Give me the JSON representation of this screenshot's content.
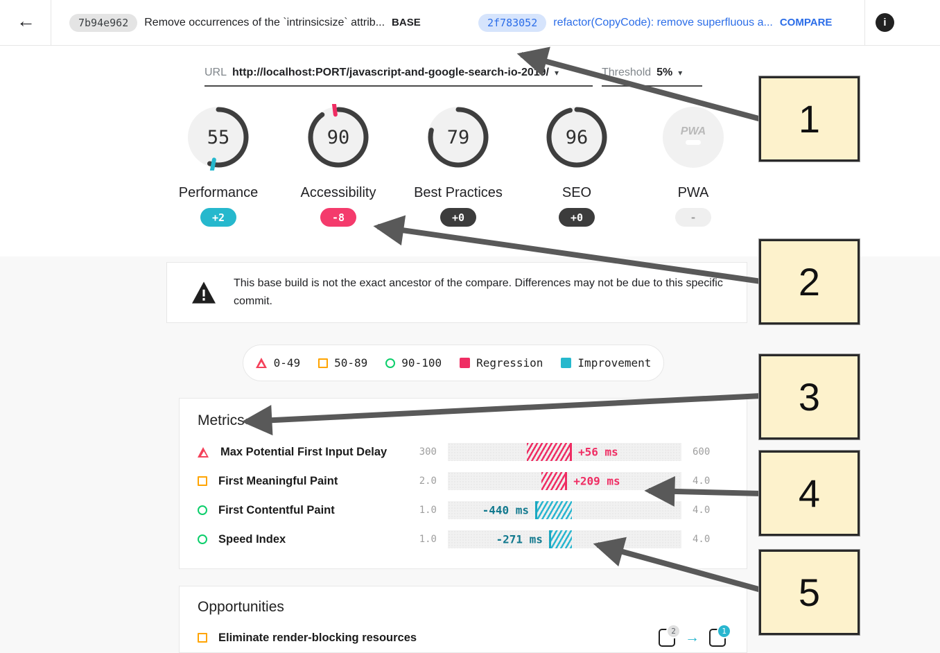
{
  "header": {
    "back_icon": "←",
    "base": {
      "hash": "7b94e962",
      "message": "Remove occurrences of the `intrinsicsize` attrib...",
      "tag": "BASE"
    },
    "compare": {
      "hash": "2f783052",
      "message": "refactor(CopyCode): remove superfluous a...",
      "tag": "COMPARE"
    },
    "info_icon": "i"
  },
  "controls": {
    "url_label": "URL",
    "url_value": "http://localhost:PORT/javascript-and-google-search-io-2019/",
    "url_caret": "▾",
    "threshold_label": "Threshold",
    "threshold_value": "5%",
    "threshold_caret": "▾"
  },
  "scores": [
    {
      "label": "Performance",
      "score": 55,
      "display": "55",
      "delta": "+2",
      "delta_value": 2,
      "delta_type": "improvement"
    },
    {
      "label": "Accessibility",
      "score": 90,
      "display": "90",
      "delta": "-8",
      "delta_value": -8,
      "delta_type": "regression"
    },
    {
      "label": "Best Practices",
      "score": 79,
      "display": "79",
      "delta": "+0",
      "delta_value": 0,
      "delta_type": "neutral"
    },
    {
      "label": "SEO",
      "score": 96,
      "display": "96",
      "delta": "+0",
      "delta_value": 0,
      "delta_type": "neutral"
    },
    {
      "label": "PWA",
      "type": "pwa",
      "logo": "PWA",
      "delta": "-",
      "delta_type": "none"
    }
  ],
  "warning": {
    "text": "This base build is not the exact ancestor of the compare. Differences may not be due to this specific commit."
  },
  "legend": [
    {
      "shape": "triangle",
      "label": "0-49"
    },
    {
      "shape": "square",
      "label": "50-89"
    },
    {
      "shape": "circle",
      "label": "90-100"
    },
    {
      "shape": "regression",
      "label": "Regression"
    },
    {
      "shape": "improvement",
      "label": "Improvement"
    }
  ],
  "metrics": {
    "title": "Metrics",
    "rows": [
      {
        "icon": "triangle",
        "label": "Max Potential First Input Delay",
        "axis_left": "300",
        "axis_right": "600",
        "delta": "+56 ms",
        "direction": "regression",
        "hatch_left_pct": 33.8,
        "hatch_width_pct": 19.3
      },
      {
        "icon": "square",
        "label": "First Meaningful Paint",
        "axis_left": "2.0",
        "axis_right": "4.0",
        "delta": "+209 ms",
        "direction": "regression",
        "hatch_left_pct": 40.1,
        "hatch_width_pct": 11.0
      },
      {
        "icon": "circle",
        "label": "First Contentful Paint",
        "axis_left": "1.0",
        "axis_right": "4.0",
        "delta": "-440 ms",
        "direction": "improvement",
        "hatch_left_pct": 37.4,
        "hatch_width_pct": 15.7
      },
      {
        "icon": "circle",
        "label": "Speed Index",
        "axis_left": "1.0",
        "axis_right": "4.0",
        "delta": "-271 ms",
        "direction": "improvement",
        "hatch_left_pct": 43.3,
        "hatch_width_pct": 9.8
      }
    ]
  },
  "opportunities": {
    "title": "Opportunities",
    "rows": [
      {
        "icon": "square",
        "label": "Eliminate render-blocking resources",
        "base_count": "2",
        "compare_count": "1",
        "arrow": "→"
      }
    ]
  },
  "annotations": {
    "labels": [
      "1",
      "2",
      "3",
      "4",
      "5"
    ]
  },
  "colors": {
    "accent_blue": "#2b6de8",
    "regression": "#ef2d63",
    "improvement": "#26b8cd",
    "score_red": "#f4415a",
    "score_orange": "#ffa400",
    "score_green": "#0cce6b",
    "annotation_fill": "#fdf2cc",
    "arrow_gray": "#595959"
  }
}
